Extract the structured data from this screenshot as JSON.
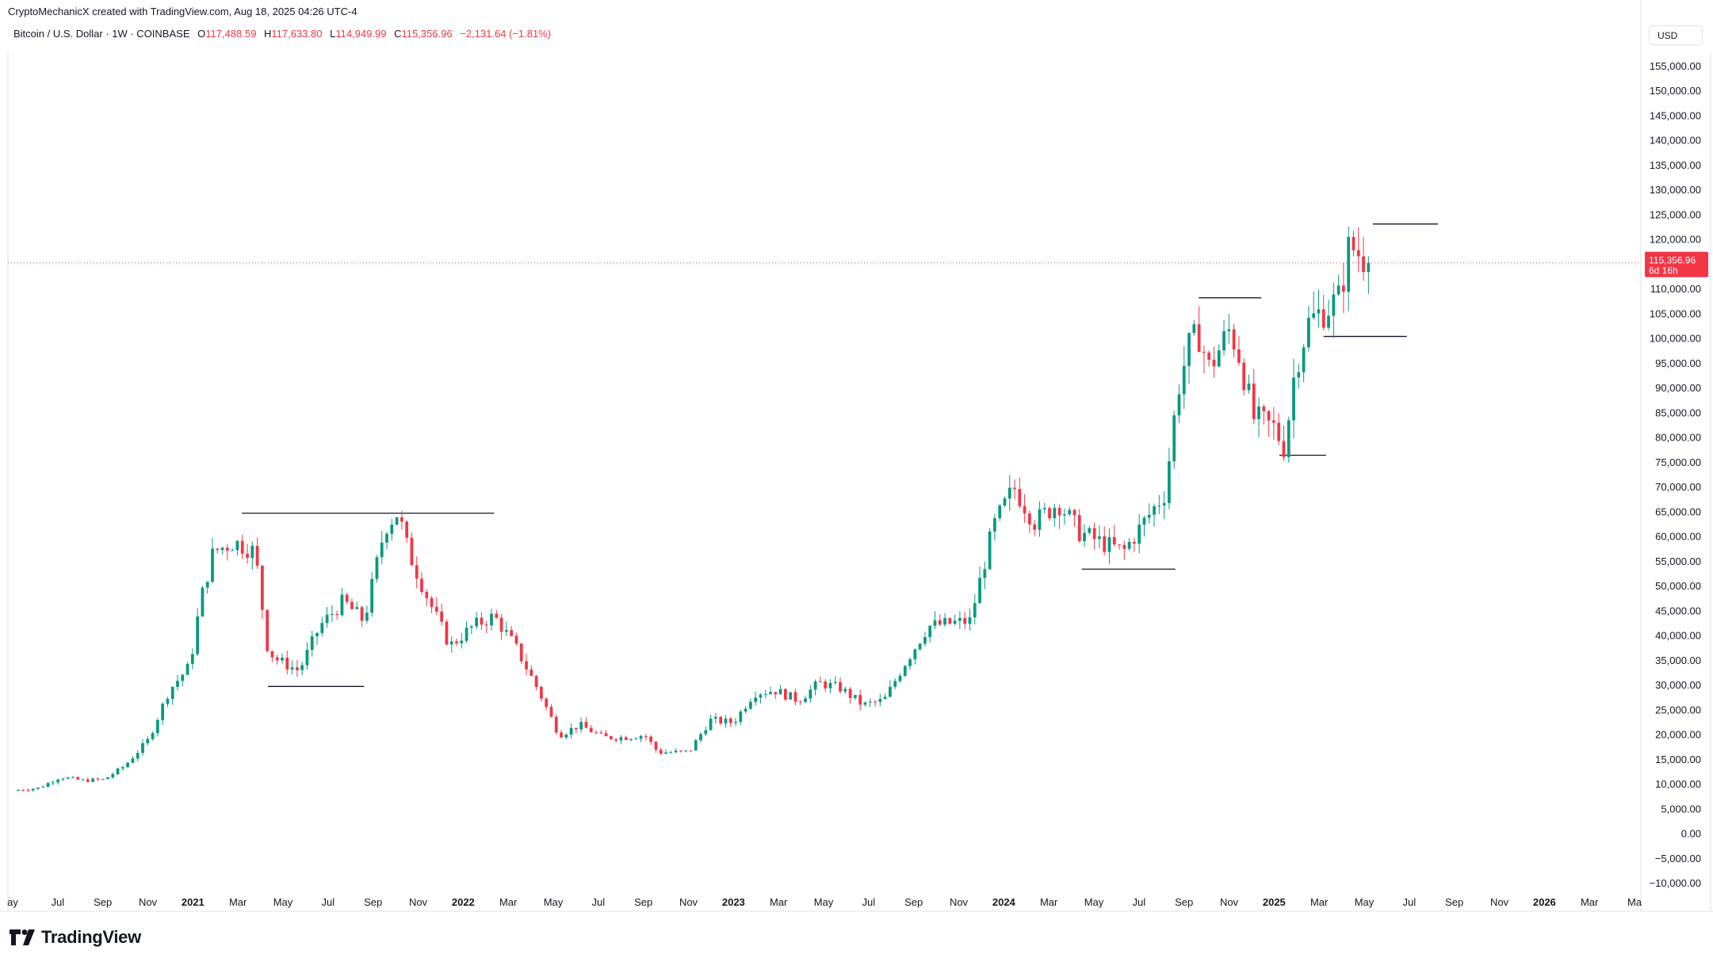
{
  "header": {
    "attribution": "CryptoMechanicX created with TradingView.com, Aug 18, 2025 04:26 UTC-4",
    "symbol": "Bitcoin / U.S. Dollar · 1W · COINBASE",
    "o_label": "O",
    "o_value": "117,488.59",
    "h_label": "H",
    "h_value": "117,633.80",
    "l_label": "L",
    "l_value": "114,949.99",
    "c_label": "C",
    "c_value": "115,356.96",
    "change": "−2,131.64 (−1.81%)"
  },
  "currency_button": "USD",
  "price_badge": {
    "price": "115,356.96",
    "countdown": "6d 16h"
  },
  "logo_text": "TradingView",
  "colors": {
    "up": "#089981",
    "down": "#f23645",
    "level": "#131722",
    "grid_text": "#131722"
  },
  "chart_data": {
    "type": "candlestick",
    "timeframe": "1W",
    "x_axis_labels": [
      "ay",
      "Jul",
      "Sep",
      "Nov",
      "2021",
      "Mar",
      "May",
      "Jul",
      "Sep",
      "Nov",
      "2022",
      "Mar",
      "May",
      "Jul",
      "Sep",
      "Nov",
      "2023",
      "Mar",
      "May",
      "Jul",
      "Sep",
      "Nov",
      "2024",
      "Mar",
      "May",
      "Jul",
      "Sep",
      "Nov",
      "2025",
      "Mar",
      "May",
      "Jul",
      "Sep",
      "Nov",
      "2026",
      "Mar",
      "Ma"
    ],
    "x_axis_bold": [
      "2021",
      "2022",
      "2023",
      "2024",
      "2025",
      "2026"
    ],
    "y_axis_labels": [
      "155,000.00",
      "150,000.00",
      "145,000.00",
      "140,000.00",
      "135,000.00",
      "130,000.00",
      "125,000.00",
      "120,000.00",
      "115,000.00",
      "110,000.00",
      "105,000.00",
      "100,000.00",
      "95,000.00",
      "90,000.00",
      "85,000.00",
      "80,000.00",
      "75,000.00",
      "70,000.00",
      "65,000.00",
      "60,000.00",
      "55,000.00",
      "50,000.00",
      "45,000.00",
      "40,000.00",
      "35,000.00",
      "30,000.00",
      "25,000.00",
      "20,000.00",
      "15,000.00",
      "10,000.00",
      "5,000.00",
      "0.00",
      "−5,000.00",
      "−10,000.00"
    ],
    "ylim": [
      -10000,
      155000
    ],
    "last_price": 115356.96,
    "close_path": [
      [
        2020.4,
        8800
      ],
      [
        2020.5,
        9300
      ],
      [
        2020.58,
        11500
      ],
      [
        2020.67,
        10800
      ],
      [
        2020.75,
        11000
      ],
      [
        2020.83,
        13800
      ],
      [
        2020.92,
        19000
      ],
      [
        2021.0,
        29000
      ],
      [
        2021.08,
        34000
      ],
      [
        2021.12,
        47000
      ],
      [
        2021.17,
        57000
      ],
      [
        2021.25,
        59000
      ],
      [
        2021.33,
        57000
      ],
      [
        2021.38,
        37000
      ],
      [
        2021.42,
        35000
      ],
      [
        2021.5,
        33000
      ],
      [
        2021.58,
        42000
      ],
      [
        2021.67,
        47000
      ],
      [
        2021.75,
        43000
      ],
      [
        2021.83,
        62000
      ],
      [
        2021.88,
        65000
      ],
      [
        2021.92,
        57000
      ],
      [
        2022.0,
        47000
      ],
      [
        2022.08,
        38000
      ],
      [
        2022.17,
        42000
      ],
      [
        2022.25,
        44000
      ],
      [
        2022.33,
        38000
      ],
      [
        2022.42,
        29000
      ],
      [
        2022.5,
        20000
      ],
      [
        2022.58,
        22000
      ],
      [
        2022.67,
        19500
      ],
      [
        2022.75,
        19500
      ],
      [
        2022.83,
        20000
      ],
      [
        2022.88,
        16500
      ],
      [
        2022.96,
        16500
      ],
      [
        2023.0,
        16600
      ],
      [
        2023.08,
        23000
      ],
      [
        2023.17,
        22500
      ],
      [
        2023.25,
        28500
      ],
      [
        2023.33,
        29000
      ],
      [
        2023.42,
        27000
      ],
      [
        2023.5,
        30500
      ],
      [
        2023.58,
        29500
      ],
      [
        2023.67,
        26000
      ],
      [
        2023.75,
        27000
      ],
      [
        2023.83,
        34500
      ],
      [
        2023.92,
        42000
      ],
      [
        2024.0,
        42500
      ],
      [
        2024.08,
        43000
      ],
      [
        2024.17,
        62000
      ],
      [
        2024.25,
        70000
      ],
      [
        2024.33,
        63000
      ],
      [
        2024.42,
        67000
      ],
      [
        2024.5,
        61000
      ],
      [
        2024.58,
        59000
      ],
      [
        2024.67,
        57000
      ],
      [
        2024.75,
        63000
      ],
      [
        2024.83,
        69000
      ],
      [
        2024.88,
        90000
      ],
      [
        2024.92,
        98000
      ],
      [
        2024.96,
        101000
      ],
      [
        2025.0,
        94000
      ],
      [
        2025.08,
        102000
      ],
      [
        2025.12,
        96000
      ],
      [
        2025.17,
        84000
      ],
      [
        2025.25,
        82000
      ],
      [
        2025.29,
        78000
      ],
      [
        2025.33,
        94000
      ],
      [
        2025.38,
        103000
      ],
      [
        2025.42,
        105000
      ],
      [
        2025.5,
        108000
      ],
      [
        2025.54,
        119000
      ],
      [
        2025.58,
        117000
      ],
      [
        2025.62,
        115357
      ]
    ],
    "horizontal_levels": [
      {
        "price": 64800,
        "x_start": 2021.28,
        "x_end": 2022.25
      },
      {
        "price": 29800,
        "x_start": 2021.38,
        "x_end": 2021.75
      },
      {
        "price": 53500,
        "x_start": 2024.51,
        "x_end": 2024.87
      },
      {
        "price": 108300,
        "x_start": 2024.96,
        "x_end": 2025.2
      },
      {
        "price": 76500,
        "x_start": 2025.27,
        "x_end": 2025.45
      },
      {
        "price": 100500,
        "x_start": 2025.44,
        "x_end": 2025.76
      },
      {
        "price": 123200,
        "x_start": 2025.63,
        "x_end": 2025.88
      }
    ]
  }
}
